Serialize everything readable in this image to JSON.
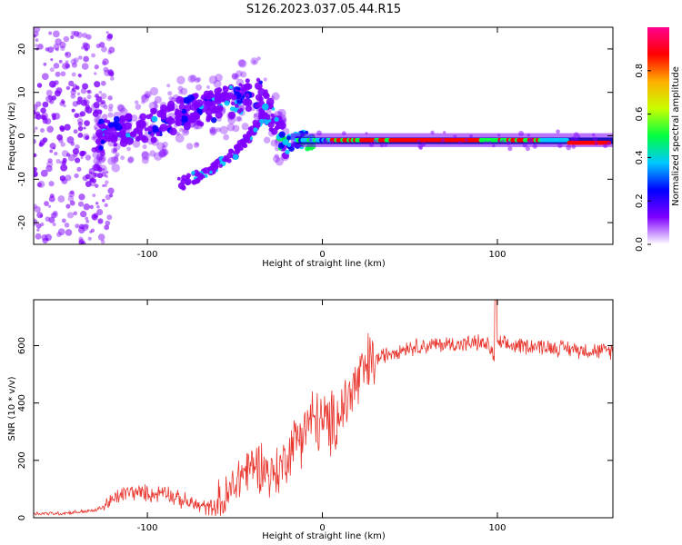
{
  "title": "S126.2023.037.05.44.R15",
  "chart_data": [
    {
      "type": "heatmap",
      "xlabel": "Height of straight line (km)",
      "ylabel": "Frequency (Hz)",
      "xlim": [
        -165,
        166
      ],
      "ylim": [
        -25,
        25
      ],
      "x_ticks": [
        -100,
        0,
        100
      ],
      "y_ticks": [
        -20,
        -10,
        0,
        10,
        20
      ],
      "colorbar": {
        "label": "Normalized spectral amplitude",
        "range": [
          0.0,
          1.0
        ],
        "ticks": [
          0.0,
          0.2,
          0.4,
          0.6,
          0.8
        ],
        "tick_labels": [
          "0.0",
          "0.2",
          "0.4",
          "0.6",
          "0.8"
        ],
        "colors": [
          "#ffffff",
          "#7f00ff",
          "#0000ff",
          "#00c8ff",
          "#00ff40",
          "#c8ff00",
          "#ffb000",
          "#ff0000",
          "#ff0090"
        ]
      },
      "features": [
        {
          "name": "main_branch",
          "x": [
            -125,
            -100,
            -80,
            -60,
            -45,
            -36,
            -30,
            -22,
            -15,
            0,
            50,
            100,
            160
          ],
          "y": [
            0,
            2,
            5,
            7,
            9,
            10,
            5,
            -1,
            -2,
            -1,
            -1,
            -1,
            -1.5
          ]
        },
        {
          "name": "lower_branch",
          "x": [
            -80,
            -70,
            -60,
            -50,
            -40,
            -32
          ],
          "y": [
            -11,
            -9,
            -7,
            -4,
            1,
            6
          ]
        }
      ]
    },
    {
      "type": "line",
      "xlabel": "Height of straight line (km)",
      "ylabel": "SNR (10 * v/v)",
      "xlim": [
        -165,
        166
      ],
      "ylim": [
        0,
        760
      ],
      "x_ticks": [
        -100,
        0,
        100
      ],
      "y_ticks": [
        0,
        200,
        400,
        600
      ],
      "series": [
        {
          "color": "#e8362e",
          "x": [
            -165,
            -150,
            -140,
            -130,
            -125,
            -120,
            -115,
            -110,
            -100,
            -95,
            -90,
            -85,
            -80,
            -75,
            -70,
            -65,
            -60,
            -55,
            -50,
            -45,
            -40,
            -35,
            -30,
            -25,
            -20,
            -15,
            -10,
            -5,
            0,
            5,
            10,
            15,
            20,
            25,
            30,
            40,
            50,
            60,
            70,
            80,
            90,
            95,
            98,
            100,
            105,
            110,
            120,
            130,
            140,
            150,
            160,
            166
          ],
          "y": [
            15,
            15,
            20,
            25,
            40,
            60,
            80,
            90,
            85,
            80,
            100,
            70,
            60,
            50,
            40,
            35,
            40,
            60,
            120,
            160,
            180,
            190,
            150,
            160,
            220,
            280,
            320,
            340,
            330,
            320,
            370,
            420,
            470,
            520,
            550,
            580,
            595,
            600,
            605,
            605,
            610,
            600,
            560,
            610,
            600,
            600,
            600,
            595,
            590,
            585,
            580,
            585
          ]
        }
      ]
    }
  ]
}
